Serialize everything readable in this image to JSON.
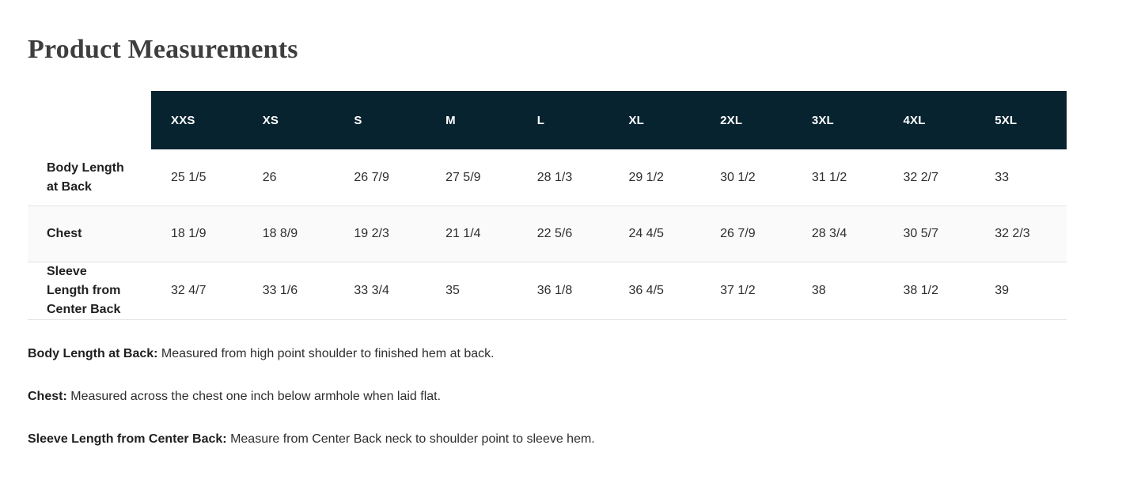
{
  "page": {
    "title": "Product Measurements"
  },
  "table": {
    "sizes": [
      "XXS",
      "XS",
      "S",
      "M",
      "L",
      "XL",
      "2XL",
      "3XL",
      "4XL",
      "5XL"
    ],
    "rows": [
      {
        "label": "Body Length at Back",
        "values": [
          "25 1/5",
          "26",
          "26 7/9",
          "27 5/9",
          "28 1/3",
          "29 1/2",
          "30 1/2",
          "31 1/2",
          "32 2/7",
          "33"
        ]
      },
      {
        "label": "Chest",
        "values": [
          "18 1/9",
          "18 8/9",
          "19 2/3",
          "21 1/4",
          "22 5/6",
          "24 4/5",
          "26 7/9",
          "28 3/4",
          "30 5/7",
          "32 2/3"
        ]
      },
      {
        "label": "Sleeve Length from Center Back",
        "values": [
          "32 4/7",
          "33 1/6",
          "33 3/4",
          "35",
          "36 1/8",
          "36 4/5",
          "37 1/2",
          "38",
          "38 1/2",
          "39"
        ]
      }
    ]
  },
  "footnotes": [
    {
      "term": "Body Length at Back:",
      "definition": "Measured from high point shoulder to finished hem at back."
    },
    {
      "term": "Chest:",
      "definition": "Measured across the chest one inch below armhole when laid flat."
    },
    {
      "term": "Sleeve Length from Center Back:",
      "definition": "Measure from Center Back neck to shoulder point to sleeve hem."
    }
  ],
  "colors": {
    "header_bg": "#072330",
    "header_text": "#ffffff",
    "row_alt_bg": "#fafafa",
    "border": "#e2e2e2",
    "title_text": "#3e3e3e",
    "body_text": "#2e2e2e",
    "label_text": "#1f1f1f"
  }
}
